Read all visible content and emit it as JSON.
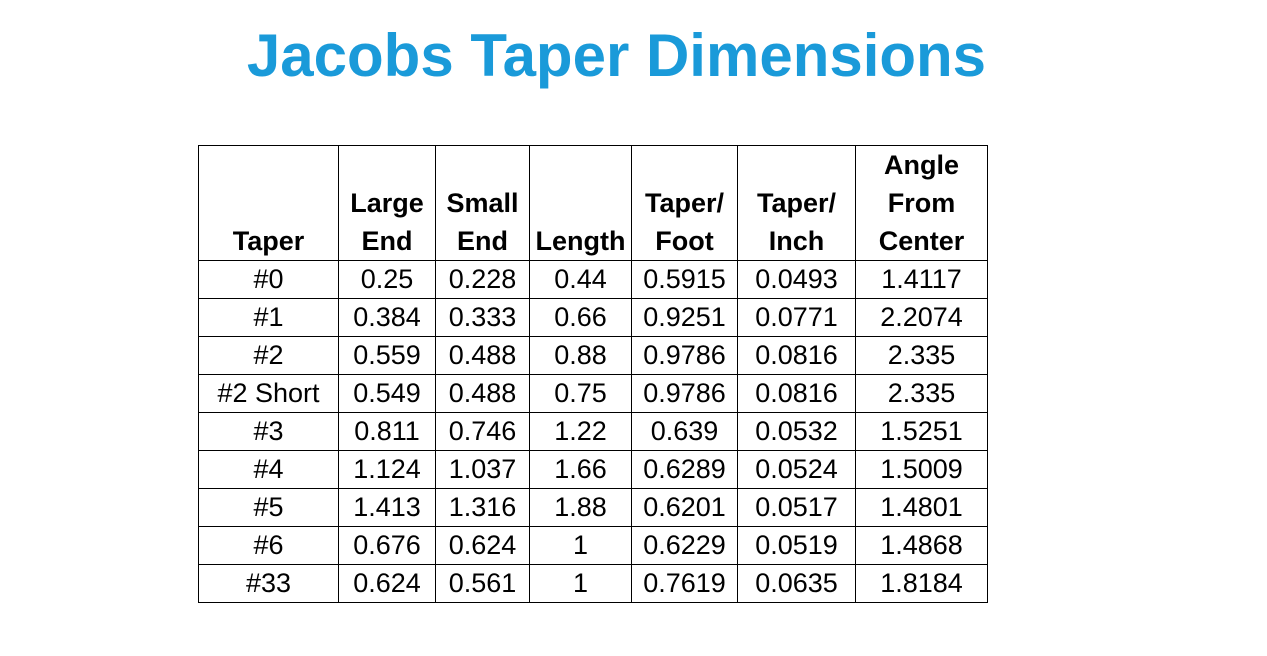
{
  "title": "Jacobs Taper Dimensions",
  "table": {
    "headers": [
      "Taper",
      "Large\nEnd",
      "Small\nEnd",
      "Length",
      "Taper/\nFoot",
      "Taper/\nInch",
      "Angle\nFrom\nCenter"
    ],
    "rows": [
      [
        "#0",
        "0.25",
        "0.228",
        "0.44",
        "0.5915",
        "0.0493",
        "1.4117"
      ],
      [
        "#1",
        "0.384",
        "0.333",
        "0.66",
        "0.9251",
        "0.0771",
        "2.2074"
      ],
      [
        "#2",
        "0.559",
        "0.488",
        "0.88",
        "0.9786",
        "0.0816",
        "2.335"
      ],
      [
        "#2 Short",
        "0.549",
        "0.488",
        "0.75",
        "0.9786",
        "0.0816",
        "2.335"
      ],
      [
        "#3",
        "0.811",
        "0.746",
        "1.22",
        "0.639",
        "0.0532",
        "1.5251"
      ],
      [
        "#4",
        "1.124",
        "1.037",
        "1.66",
        "0.6289",
        "0.0524",
        "1.5009"
      ],
      [
        "#5",
        "1.413",
        "1.316",
        "1.88",
        "0.6201",
        "0.0517",
        "1.4801"
      ],
      [
        "#6",
        "0.676",
        "0.624",
        "1",
        "0.6229",
        "0.0519",
        "1.4868"
      ],
      [
        "#33",
        "0.624",
        "0.561",
        "1",
        "0.7619",
        "0.0635",
        "1.8184"
      ]
    ]
  },
  "colors": {
    "title": "#1a9ad9",
    "text": "#000000",
    "border": "#000000",
    "background": "#ffffff"
  }
}
